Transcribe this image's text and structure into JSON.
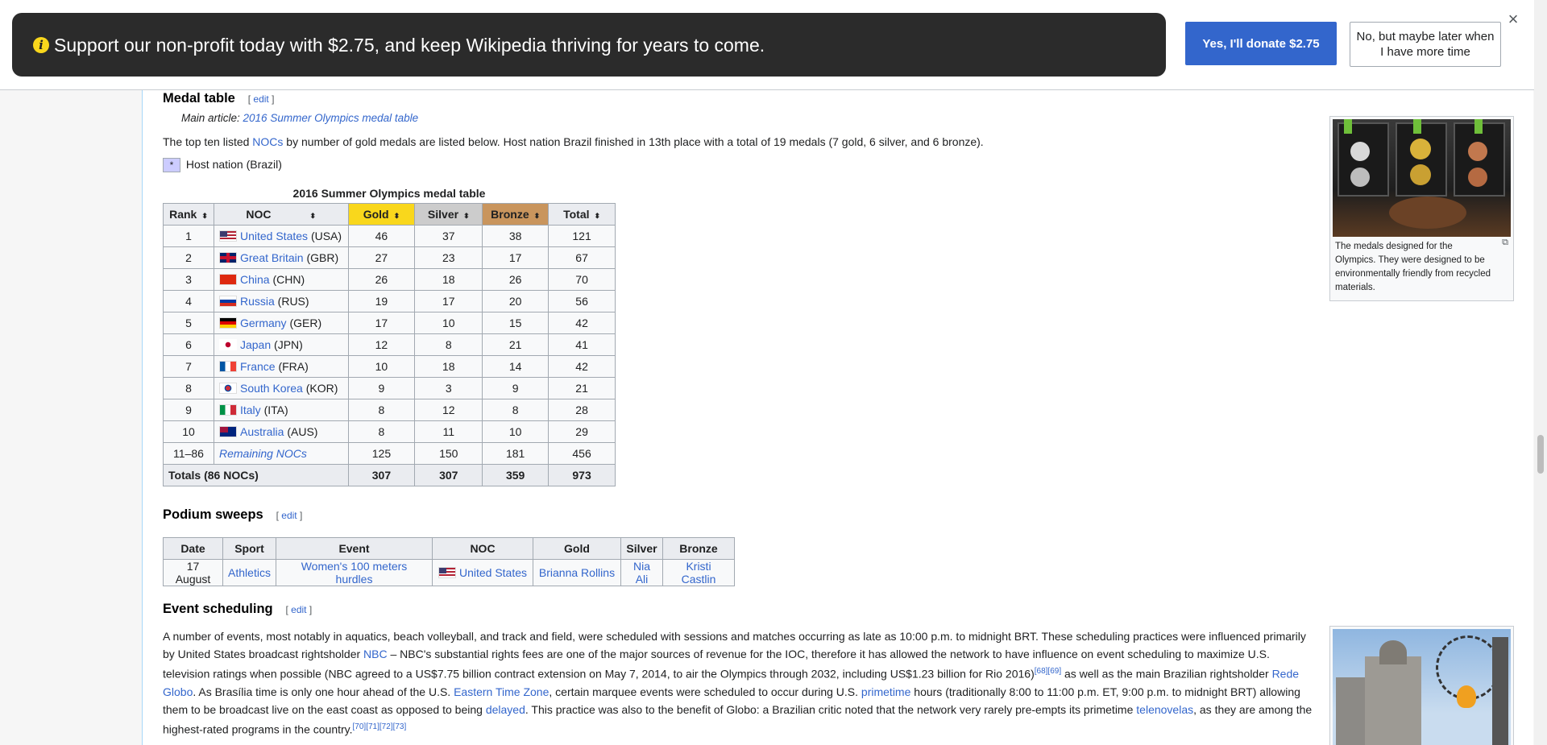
{
  "banner": {
    "message": "Support our non-profit today with $2.75, and keep Wikipedia thriving for years to come.",
    "donate_label": "Yes, I'll donate $2.75",
    "later_label": "No, but maybe later when I have more time",
    "close_glyph": "×"
  },
  "medal_section": {
    "heading": "Medal table",
    "edit": "edit",
    "main_article_prefix": "Main article: ",
    "main_article_link": "2016 Summer Olympics medal table",
    "intro_pre": "The top ten listed ",
    "intro_link": "NOCs",
    "intro_post": " by number of gold medals are listed below. Host nation Brazil finished in 13th place with a total of 19 medals (7 gold, 6 silver, and 6 bronze).",
    "host_key": "*",
    "host_label": "Host nation (Brazil)",
    "caption": "2016 Summer Olympics medal table",
    "headers": [
      "Rank",
      "NOC",
      "Gold",
      "Silver",
      "Bronze",
      "Total"
    ],
    "rows": [
      {
        "rank": "1",
        "country": "United States",
        "code": "(USA)",
        "gold": "46",
        "silver": "37",
        "bronze": "38",
        "total": "121",
        "flag": "usa"
      },
      {
        "rank": "2",
        "country": "Great Britain",
        "code": "(GBR)",
        "gold": "27",
        "silver": "23",
        "bronze": "17",
        "total": "67",
        "flag": "gbr"
      },
      {
        "rank": "3",
        "country": "China",
        "code": "(CHN)",
        "gold": "26",
        "silver": "18",
        "bronze": "26",
        "total": "70",
        "flag": "chn"
      },
      {
        "rank": "4",
        "country": "Russia",
        "code": "(RUS)",
        "gold": "19",
        "silver": "17",
        "bronze": "20",
        "total": "56",
        "flag": "rus"
      },
      {
        "rank": "5",
        "country": "Germany",
        "code": "(GER)",
        "gold": "17",
        "silver": "10",
        "bronze": "15",
        "total": "42",
        "flag": "ger"
      },
      {
        "rank": "6",
        "country": "Japan",
        "code": "(JPN)",
        "gold": "12",
        "silver": "8",
        "bronze": "21",
        "total": "41",
        "flag": "jpn"
      },
      {
        "rank": "7",
        "country": "France",
        "code": "(FRA)",
        "gold": "10",
        "silver": "18",
        "bronze": "14",
        "total": "42",
        "flag": "fra"
      },
      {
        "rank": "8",
        "country": "South Korea",
        "code": "(KOR)",
        "gold": "9",
        "silver": "3",
        "bronze": "9",
        "total": "21",
        "flag": "kor"
      },
      {
        "rank": "9",
        "country": "Italy",
        "code": "(ITA)",
        "gold": "8",
        "silver": "12",
        "bronze": "8",
        "total": "28",
        "flag": "ita"
      },
      {
        "rank": "10",
        "country": "Australia",
        "code": "(AUS)",
        "gold": "8",
        "silver": "11",
        "bronze": "10",
        "total": "29",
        "flag": "aus"
      }
    ],
    "remaining": {
      "rank": "11–86",
      "label": "Remaining NOCs",
      "gold": "125",
      "silver": "150",
      "bronze": "181",
      "total": "456"
    },
    "totals": {
      "label": "Totals (86 NOCs)",
      "gold": "307",
      "silver": "307",
      "bronze": "359",
      "total": "973"
    },
    "thumb_caption": "The medals designed for the Olympics. They were designed to be environmentally friendly from recycled materials."
  },
  "podium_section": {
    "heading": "Podium sweeps",
    "edit": "edit",
    "headers": [
      "Date",
      "Sport",
      "Event",
      "NOC",
      "Gold",
      "Silver",
      "Bronze"
    ],
    "row": {
      "date": "17 August",
      "sport": "Athletics",
      "event": "Women's 100 meters hurdles",
      "noc": "United States",
      "gold": "Brianna Rollins",
      "silver": "Nia Ali",
      "bronze": "Kristi Castlin"
    }
  },
  "scheduling_section": {
    "heading": "Event scheduling",
    "edit": "edit",
    "p1": "A number of events, most notably in aquatics, beach volleyball, and track and field, were scheduled with sessions and matches occurring as late as 10:00 p.m. to midnight BRT. These scheduling practices were influenced primarily by United States broadcast rightsholder ",
    "nbc": "NBC",
    "p2": " – NBC's substantial rights fees are one of the major sources of revenue for the IOC, therefore it has allowed the network to have influence on event scheduling to maximize U.S. television ratings when possible (NBC agreed to a US$7.75 billion contract extension on May 7, 2014, to air the Olympics through 2032, including US$1.23 billion for Rio 2016)",
    "ref1": "[68][69]",
    "p3": " as well as the main Brazilian rightsholder ",
    "rede": "Rede Globo",
    "p4": ". As Brasília time is only one hour ahead of the U.S. ",
    "etz": "Eastern Time Zone",
    "p5": ", certain marquee events were scheduled to occur during U.S. ",
    "prime": "primetime",
    "p6": " hours (traditionally 8:00 to 11:00 p.m. ET, 9:00 p.m. to midnight BRT) allowing them to be broadcast live on the east coast as opposed to being ",
    "delayed": "delayed",
    "p7": ". This practice was also to the benefit of Globo: a Brazilian critic noted that the network very rarely pre-empts its primetime ",
    "telenovelas": "telenovelas",
    "p8": ", as they are among the highest-rated programs in the country.",
    "ref2": "[70][71][72][73]"
  },
  "colors": {
    "gold": "#f9d71c",
    "silver": "#cccccc",
    "bronze": "#c9955d",
    "link": "#3366cc",
    "donate": "#3366cc",
    "host": "#ccccff"
  }
}
